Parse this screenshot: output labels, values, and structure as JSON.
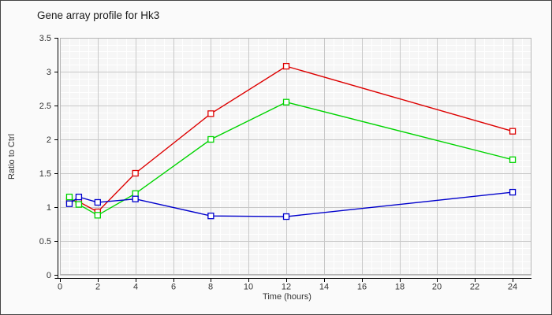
{
  "figure": {
    "title": "Gene array profile for Hk3"
  },
  "colors": {
    "figure_background": "#fafafa",
    "figure_border": "#434343",
    "plot_background": "#f6f6f6",
    "grid_minor": "#ffffff",
    "grid_major": "#c8c8c8",
    "plot_frame": "#b4b4b4",
    "axis": "#000000",
    "tick_text": "#333333"
  },
  "chart_data": {
    "type": "line",
    "title": "Gene array profile for Hk3",
    "xlabel": "Time (hours)",
    "ylabel": "Ratio to Ctrl",
    "x": [
      0.5,
      1,
      2,
      4,
      8,
      12,
      24
    ],
    "series": [
      {
        "name": "red",
        "color": "#dd0000",
        "values": [
          1.1,
          1.08,
          0.93,
          1.5,
          2.38,
          3.08,
          2.12
        ]
      },
      {
        "name": "green",
        "color": "#00d400",
        "values": [
          1.15,
          1.04,
          0.88,
          1.2,
          2.0,
          2.55,
          1.7
        ]
      },
      {
        "name": "blue",
        "color": "#0000cc",
        "values": [
          1.05,
          1.15,
          1.07,
          1.12,
          0.87,
          0.86,
          1.22
        ]
      }
    ],
    "xlim": [
      0,
      25
    ],
    "ylim": [
      0,
      3.5
    ],
    "x_ticks": [
      {
        "v": 0,
        "label": "0"
      },
      {
        "v": 2,
        "label": "2"
      },
      {
        "v": 4,
        "label": "4"
      },
      {
        "v": 6,
        "label": "6"
      },
      {
        "v": 8,
        "label": "8"
      },
      {
        "v": 10,
        "label": "10"
      },
      {
        "v": 12,
        "label": "12"
      },
      {
        "v": 14,
        "label": "14"
      },
      {
        "v": 16,
        "label": "16"
      },
      {
        "v": 18,
        "label": "18"
      },
      {
        "v": 20,
        "label": "20"
      },
      {
        "v": 22,
        "label": "22"
      },
      {
        "v": 24,
        "label": "24"
      }
    ],
    "y_ticks": [
      {
        "v": 0,
        "label": "0"
      },
      {
        "v": 0.5,
        "label": "0.5"
      },
      {
        "v": 1,
        "label": "1"
      },
      {
        "v": 1.5,
        "label": "1.5"
      },
      {
        "v": 2,
        "label": "2"
      },
      {
        "v": 2.5,
        "label": "2.5"
      },
      {
        "v": 3,
        "label": "3"
      },
      {
        "v": 3.5,
        "label": "3.5"
      }
    ],
    "x_minor_step": 0.5,
    "y_minor_step": 0.1,
    "grid": true,
    "legend": "none",
    "marker": "open-square"
  }
}
